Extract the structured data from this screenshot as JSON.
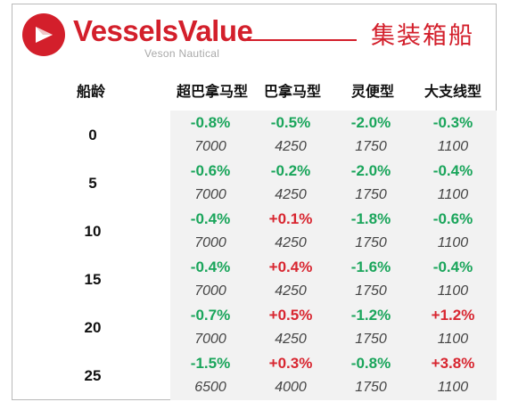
{
  "header": {
    "brand": "VesselsValue",
    "brand_sub": "Veson Nautical",
    "title": "集装箱船"
  },
  "table": {
    "row_header": "船龄",
    "columns": [
      "超巴拿马型",
      "巴拿马型",
      "灵便型",
      "大支线型"
    ],
    "rows": [
      {
        "age": "0",
        "changes": [
          "-0.8%",
          "-0.5%",
          "-2.0%",
          "-0.3%"
        ],
        "values": [
          "7000",
          "4250",
          "1750",
          "1100"
        ]
      },
      {
        "age": "5",
        "changes": [
          "-0.6%",
          "-0.2%",
          "-2.0%",
          "-0.4%"
        ],
        "values": [
          "7000",
          "4250",
          "1750",
          "1100"
        ]
      },
      {
        "age": "10",
        "changes": [
          "-0.4%",
          "+0.1%",
          "-1.8%",
          "-0.6%"
        ],
        "values": [
          "7000",
          "4250",
          "1750",
          "1100"
        ]
      },
      {
        "age": "15",
        "changes": [
          "-0.4%",
          "+0.4%",
          "-1.6%",
          "-0.4%"
        ],
        "values": [
          "7000",
          "4250",
          "1750",
          "1100"
        ]
      },
      {
        "age": "20",
        "changes": [
          "-0.7%",
          "+0.5%",
          "-1.2%",
          "+1.2%"
        ],
        "values": [
          "7000",
          "4250",
          "1750",
          "1100"
        ]
      },
      {
        "age": "25",
        "changes": [
          "-1.5%",
          "+0.3%",
          "-0.8%",
          "+3.8%"
        ],
        "values": [
          "6500",
          "4000",
          "1750",
          "1100"
        ]
      }
    ]
  },
  "colors": {
    "brand": "#d31f2b",
    "decrease": "#1aa55b",
    "increase": "#d82630",
    "panel": "#f2f2f2"
  },
  "icons": {
    "logo": "vesselsvalue-logo-icon"
  }
}
